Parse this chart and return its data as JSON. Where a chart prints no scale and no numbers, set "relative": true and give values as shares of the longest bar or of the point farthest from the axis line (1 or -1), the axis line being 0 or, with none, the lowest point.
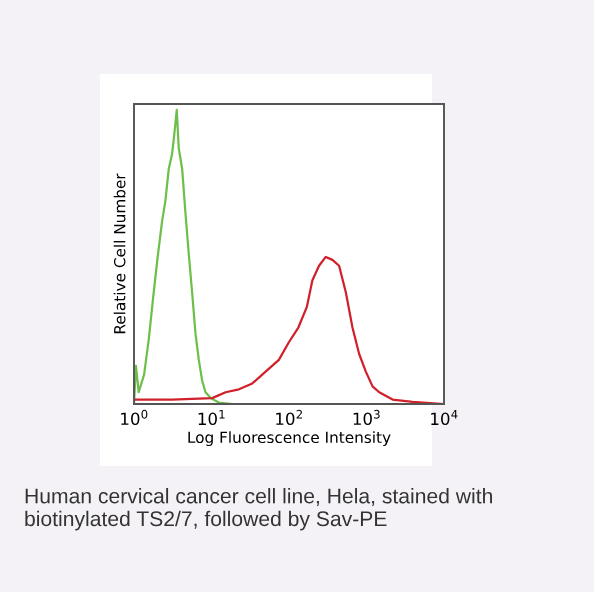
{
  "chart_data": {
    "type": "line",
    "relative": true,
    "log": "x",
    "xlabel": "Log Fluorescence Intensity",
    "ylabel": "Relative Cell Number",
    "xlim": [
      1,
      10000
    ],
    "xticks": [
      {
        "value": 1,
        "label": "10$^{0}$"
      },
      {
        "value": 10,
        "label": "10$^{1}$"
      },
      {
        "value": 100,
        "label": "10$^{2}$"
      },
      {
        "value": 1000,
        "label": "10$^{3}$"
      },
      {
        "value": 10000,
        "label": "10$^{4}$"
      }
    ],
    "tick_labels": "x",
    "grid": false,
    "legend": false,
    "marker": "none",
    "line_style": "solid",
    "series": [
      {
        "color": "#6cc04a",
        "x": [
          1.0,
          1.06,
          1.15,
          1.35,
          1.55,
          1.78,
          2.0,
          2.3,
          2.54,
          2.81,
          3.1,
          3.29,
          3.56,
          3.78,
          4.18,
          4.61,
          5.09,
          5.62,
          6.21,
          6.86,
          7.57,
          8.36,
          9.8,
          12.4,
          18.5,
          10000
        ],
        "values": [
          0,
          0.13,
          0.04,
          0.1,
          0.22,
          0.37,
          0.49,
          0.62,
          0.69,
          0.8,
          0.85,
          0.91,
          1.0,
          0.87,
          0.8,
          0.65,
          0.51,
          0.38,
          0.24,
          0.15,
          0.08,
          0.04,
          0.02,
          0.005,
          0,
          0
        ]
      },
      {
        "color": "#d0202a",
        "x": [
          1.04,
          3.1,
          10.2,
          15.2,
          22.6,
          33.6,
          49.9,
          74,
          99.6,
          132,
          170,
          200,
          244,
          298,
          363,
          443,
          541,
          659,
          804,
          980,
          1197,
          1459,
          2168,
          3936,
          10000
        ],
        "values": [
          0.015,
          0.015,
          0.02,
          0.04,
          0.05,
          0.07,
          0.11,
          0.15,
          0.21,
          0.26,
          0.33,
          0.42,
          0.47,
          0.5,
          0.49,
          0.47,
          0.38,
          0.26,
          0.17,
          0.11,
          0.06,
          0.04,
          0.015,
          0.007,
          0
        ]
      }
    ],
    "annotations": [
      "Human cervical cancer cell line, Hela, stained with biotinylated TS2/7, followed by Sav-PE"
    ]
  }
}
